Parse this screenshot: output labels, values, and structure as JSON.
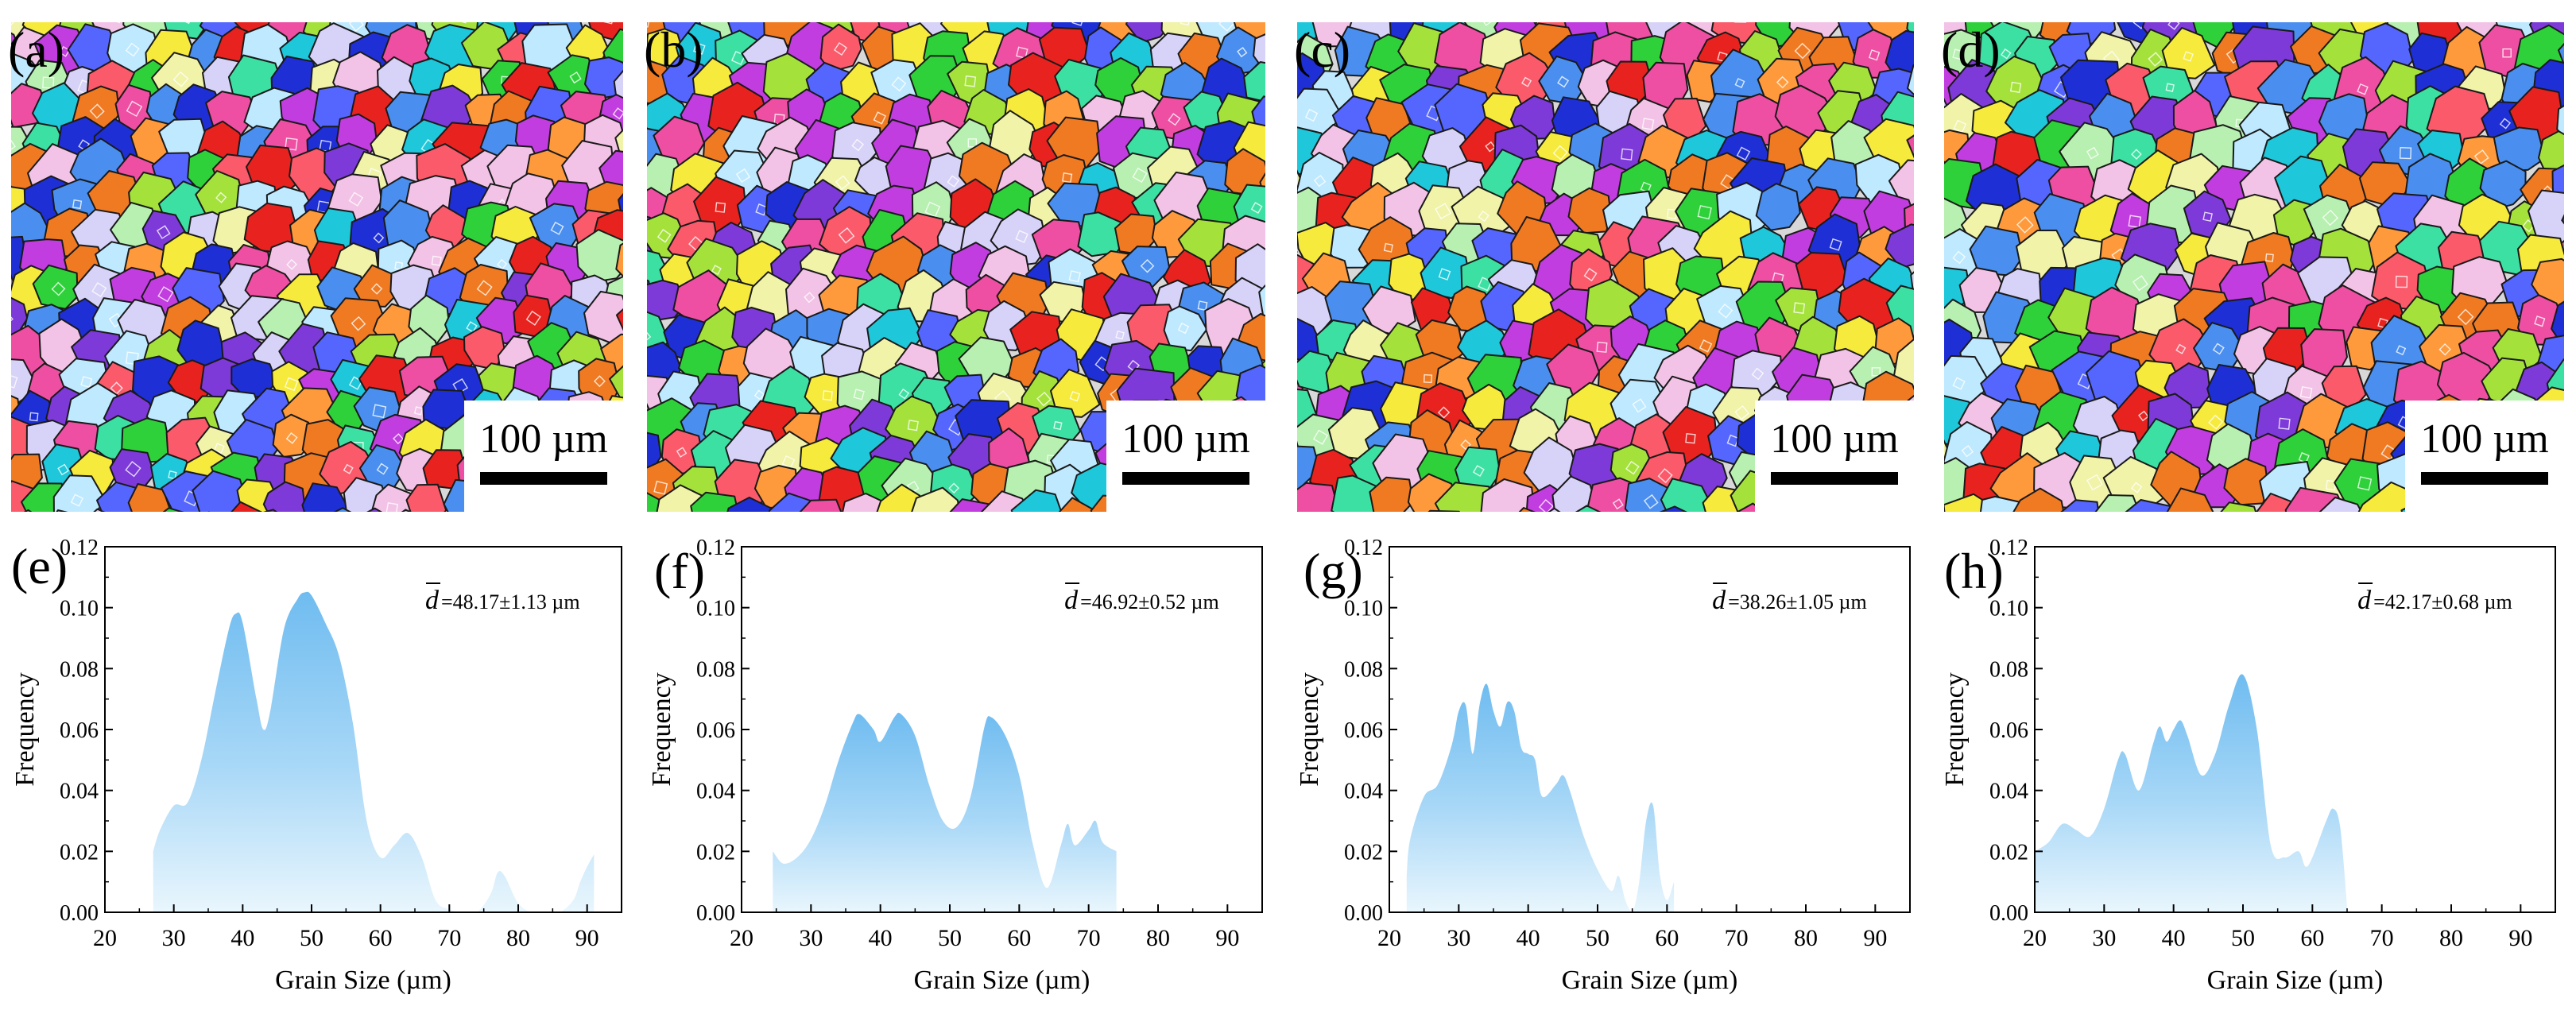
{
  "figure": {
    "ebsd_maps": [
      {
        "label": "(a)",
        "scale_bar": "100 µm"
      },
      {
        "label": "(b)",
        "scale_bar": "100 µm"
      },
      {
        "label": "(c)",
        "scale_bar": "100 µm"
      },
      {
        "label": "(d)",
        "scale_bar": "100 µm"
      }
    ],
    "grain_colors": [
      "#e8231f",
      "#1f2fd6",
      "#2fd13a",
      "#c23de0",
      "#f6ea3c",
      "#1ec7d9",
      "#f07a22",
      "#ee4fa2",
      "#7d3ad9",
      "#a4e23b",
      "#4a8ff0",
      "#f2c3e6",
      "#b7f0b0",
      "#fb5a6b",
      "#d7d2f7",
      "#3de0a3",
      "#ff9a3c",
      "#5566ff",
      "#bfe9ff",
      "#f0f3a8"
    ]
  },
  "chart_data": [
    {
      "type": "area",
      "label": "(e)",
      "mean_label_symbol": "d",
      "mean_label_value": "=48.17±1.13 µm",
      "xlabel": "Grain Size (µm)",
      "ylabel": "Frequency",
      "xlim": [
        20,
        95
      ],
      "ylim": [
        0,
        0.12
      ],
      "xticks": [
        "20",
        "30",
        "40",
        "50",
        "60",
        "70",
        "80",
        "90"
      ],
      "yticks": [
        "0.00",
        "0.02",
        "0.04",
        "0.06",
        "0.08",
        "0.10",
        "0.12"
      ],
      "x": [
        27,
        28,
        30,
        32,
        34,
        36,
        38,
        39,
        40,
        42,
        43,
        44,
        46,
        48,
        49,
        50,
        52,
        54,
        56,
        58,
        60,
        62,
        64,
        66,
        68,
        70,
        72,
        74,
        76,
        77,
        78,
        80,
        82,
        84,
        86,
        88,
        89,
        90,
        91
      ],
      "y": [
        0.02,
        0.027,
        0.035,
        0.036,
        0.05,
        0.072,
        0.093,
        0.098,
        0.095,
        0.07,
        0.06,
        0.066,
        0.093,
        0.103,
        0.105,
        0.104,
        0.095,
        0.084,
        0.062,
        0.03,
        0.018,
        0.022,
        0.026,
        0.018,
        0.004,
        0.001,
        0.0,
        0.0,
        0.006,
        0.013,
        0.012,
        0.003,
        0.0,
        0.0,
        0.0,
        0.004,
        0.01,
        0.015,
        0.019
      ]
    },
    {
      "type": "area",
      "label": "(f)",
      "mean_label_symbol": "d",
      "mean_label_value": "=46.92±0.52 µm",
      "xlabel": "Grain Size (µm)",
      "ylabel": "Frequency",
      "xlim": [
        20,
        95
      ],
      "ylim": [
        0,
        0.12
      ],
      "xticks": [
        "20",
        "30",
        "40",
        "50",
        "60",
        "70",
        "80",
        "90"
      ],
      "yticks": [
        "0.00",
        "0.02",
        "0.04",
        "0.06",
        "0.08",
        "0.10",
        "0.12"
      ],
      "x": [
        24.5,
        26,
        28,
        30,
        32,
        34,
        36,
        37,
        39,
        40,
        42,
        43,
        45,
        47,
        49,
        51,
        53,
        55,
        56,
        58,
        60,
        62,
        64,
        66,
        67,
        68,
        70,
        71,
        72,
        74
      ],
      "y": [
        0.02,
        0.016,
        0.018,
        0.024,
        0.035,
        0.05,
        0.062,
        0.065,
        0.06,
        0.056,
        0.064,
        0.065,
        0.058,
        0.042,
        0.03,
        0.028,
        0.038,
        0.061,
        0.064,
        0.058,
        0.045,
        0.022,
        0.008,
        0.022,
        0.029,
        0.022,
        0.027,
        0.03,
        0.023,
        0.02
      ]
    },
    {
      "type": "area",
      "label": "(g)",
      "mean_label_symbol": "d",
      "mean_label_value": "=38.26±1.05 µm",
      "xlabel": "Grain Size (µm)",
      "ylabel": "Frequency",
      "xlim": [
        20,
        95
      ],
      "ylim": [
        0,
        0.12
      ],
      "xticks": [
        "20",
        "30",
        "40",
        "50",
        "60",
        "70",
        "80",
        "90"
      ],
      "yticks": [
        "0.00",
        "0.02",
        "0.04",
        "0.06",
        "0.08",
        "0.10",
        "0.12"
      ],
      "x": [
        22.5,
        23,
        25,
        27,
        29,
        30,
        31,
        32,
        33,
        34,
        35,
        36,
        37,
        38,
        39,
        40,
        41,
        42,
        44,
        45,
        46,
        48,
        50,
        52,
        53,
        54,
        55,
        56,
        57,
        58,
        59,
        60,
        61
      ],
      "y": [
        0.012,
        0.024,
        0.038,
        0.042,
        0.055,
        0.066,
        0.068,
        0.052,
        0.068,
        0.075,
        0.066,
        0.061,
        0.069,
        0.066,
        0.054,
        0.052,
        0.05,
        0.038,
        0.042,
        0.045,
        0.04,
        0.025,
        0.014,
        0.007,
        0.012,
        0.004,
        0.0,
        0.01,
        0.03,
        0.035,
        0.012,
        0.004,
        0.01
      ]
    },
    {
      "type": "area",
      "label": "(h)",
      "mean_label_symbol": "d",
      "mean_label_value": "=42.17±0.68 µm",
      "xlabel": "Grain Size (µm)",
      "ylabel": "Frequency",
      "xlim": [
        20,
        95
      ],
      "ylim": [
        0,
        0.12
      ],
      "xticks": [
        "20",
        "30",
        "40",
        "50",
        "60",
        "70",
        "80",
        "90"
      ],
      "yticks": [
        "0.00",
        "0.02",
        "0.04",
        "0.06",
        "0.08",
        "0.10",
        "0.12"
      ],
      "x": [
        20,
        22,
        24,
        26,
        28,
        30,
        32,
        33,
        35,
        37,
        38,
        39,
        40,
        41,
        42,
        44,
        46,
        48,
        50,
        52,
        54,
        56,
        58,
        59,
        60,
        62,
        63,
        64,
        65
      ],
      "y": [
        0.02,
        0.023,
        0.029,
        0.027,
        0.025,
        0.034,
        0.05,
        0.052,
        0.04,
        0.055,
        0.061,
        0.056,
        0.06,
        0.063,
        0.058,
        0.045,
        0.052,
        0.068,
        0.078,
        0.06,
        0.022,
        0.018,
        0.02,
        0.015,
        0.018,
        0.03,
        0.034,
        0.028,
        0.002
      ]
    }
  ]
}
